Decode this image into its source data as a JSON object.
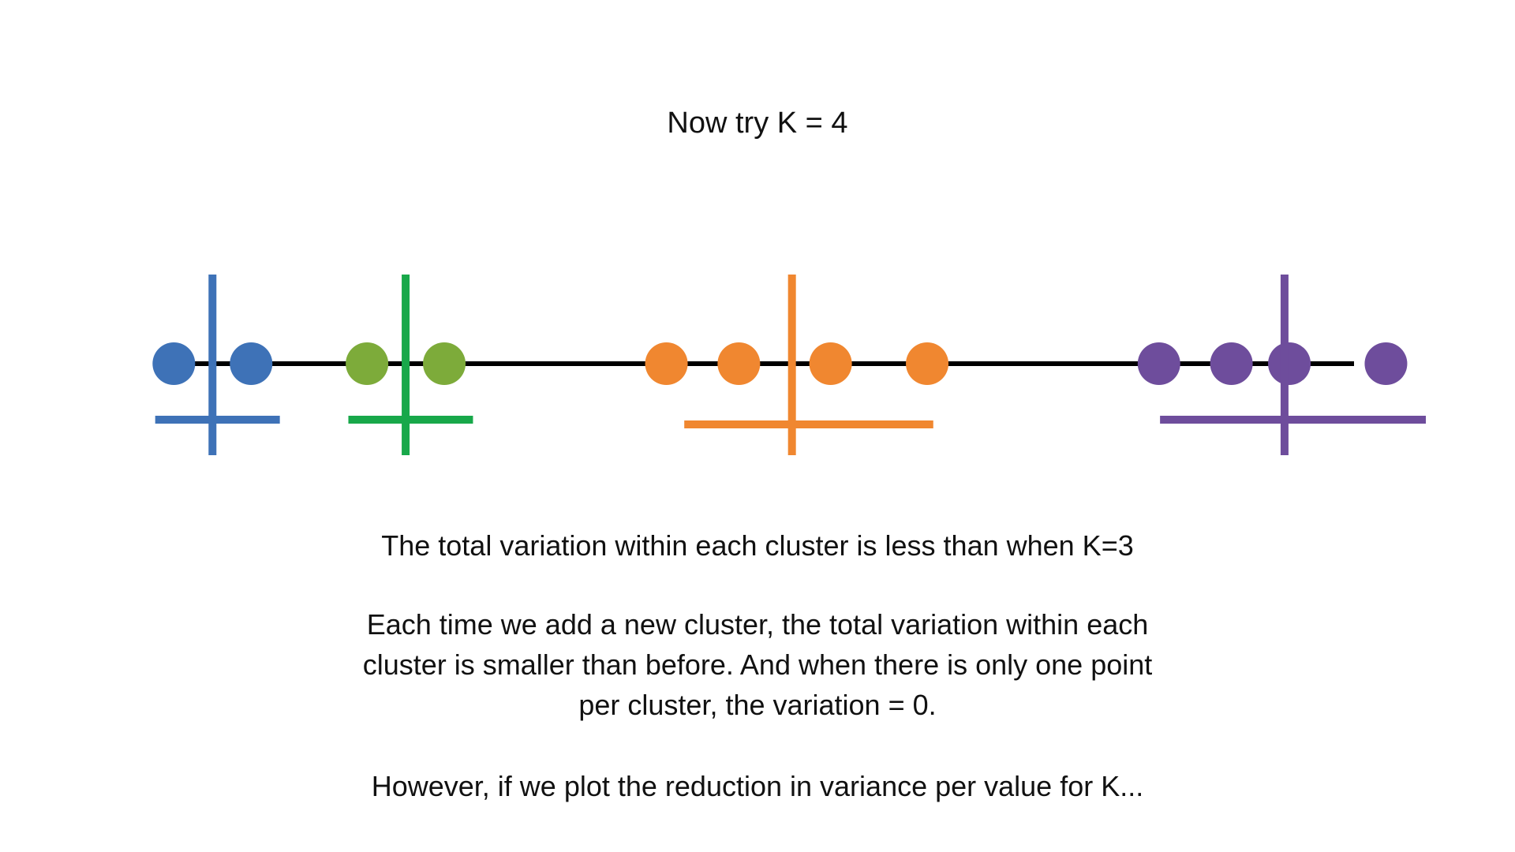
{
  "slide": {
    "title": "Now try K = 4",
    "line1": "The total variation within each cluster is less than when K=3",
    "paragraph": [
      "Each time we add a new cluster, the total variation within each",
      "cluster is smaller than before. And when there is only one point",
      "per cluster, the variation = 0."
    ],
    "line3": "However, if we plot the reduction in variance per value for K..."
  },
  "clusters": [
    {
      "id": "blue",
      "color": "#3e72b7",
      "points": [
        1.8,
        2.6
      ],
      "center": 2.2,
      "spread": [
        1.0,
        1.3
      ]
    },
    {
      "id": "green",
      "color": "#7dab3a",
      "marker_color": "#18a84a",
      "points": [
        3.8,
        4.6
      ],
      "center": 4.2,
      "spread": [
        1.0,
        1.3
      ]
    },
    {
      "id": "orange",
      "color": "#f08730",
      "points": [
        6.9,
        7.65,
        8.6,
        9.6
      ],
      "center": 8.2,
      "spread": [
        2.5,
        3.5
      ]
    },
    {
      "id": "purple",
      "color": "#6e4d9c",
      "points": [
        12.0,
        12.75,
        13.35,
        14.35
      ],
      "center": 13.3,
      "spread": [
        3.0,
        3.5
      ]
    }
  ],
  "axis": {
    "range": [
      0,
      15
    ],
    "color": "#000000"
  }
}
